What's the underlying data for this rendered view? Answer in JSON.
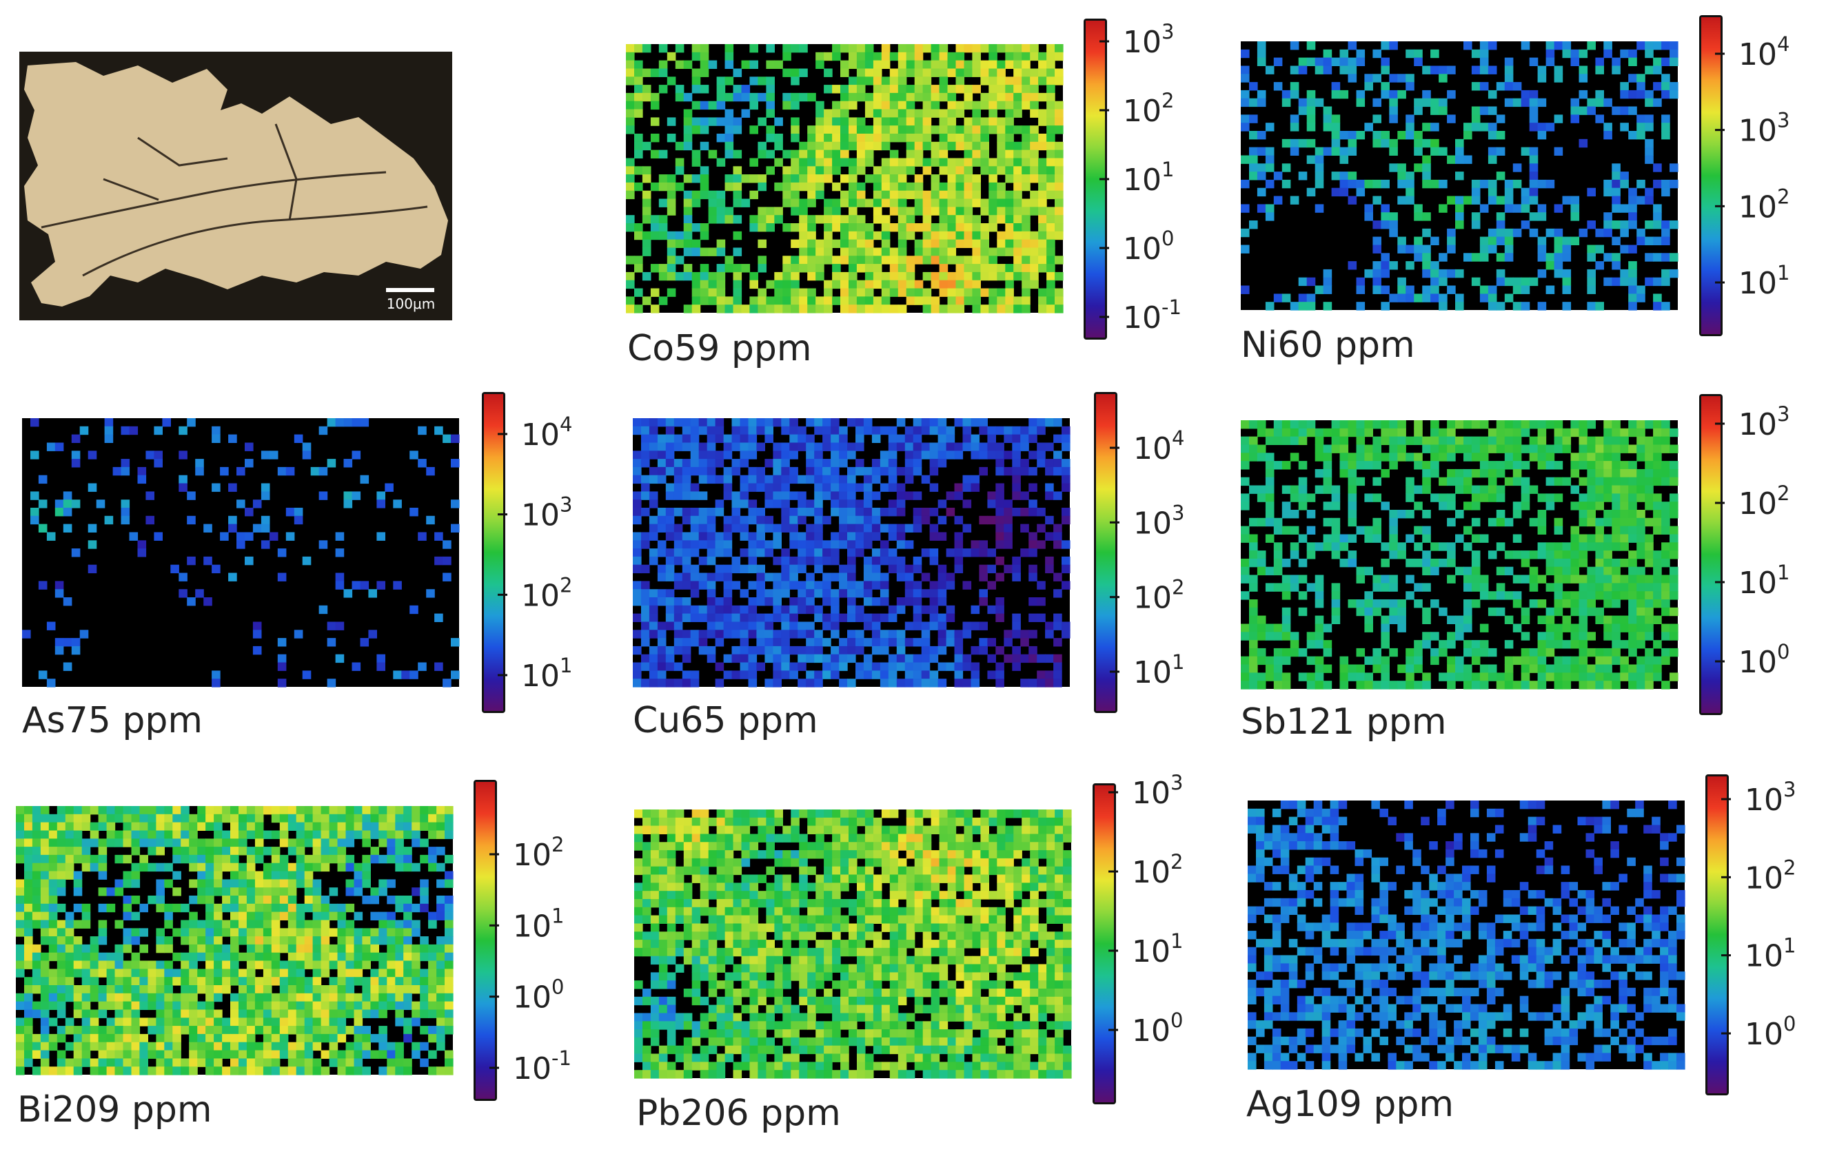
{
  "figure": {
    "micrograph": {
      "scale_bar_label": "100μm"
    },
    "colormap": [
      "#5b0f6e",
      "#2a1aa6",
      "#1d52e0",
      "#1f9bd8",
      "#1ec28f",
      "#25c13a",
      "#8fd83a",
      "#e8e632",
      "#f7a42b",
      "#ee3a22",
      "#c41a1a"
    ],
    "panels": [
      {
        "key": "co",
        "label": "Co59 ppm",
        "ticks": [
          {
            "base": "10",
            "exp": "3"
          },
          {
            "base": "10",
            "exp": "2"
          },
          {
            "base": "10",
            "exp": "1"
          },
          {
            "base": "10",
            "exp": "0"
          },
          {
            "base": "10",
            "exp": "-1"
          }
        ]
      },
      {
        "key": "ni",
        "label": "Ni60 ppm",
        "ticks": [
          {
            "base": "10",
            "exp": "4"
          },
          {
            "base": "10",
            "exp": "3"
          },
          {
            "base": "10",
            "exp": "2"
          },
          {
            "base": "10",
            "exp": "1"
          }
        ]
      },
      {
        "key": "as",
        "label": "As75 ppm",
        "ticks": [
          {
            "base": "10",
            "exp": "4"
          },
          {
            "base": "10",
            "exp": "3"
          },
          {
            "base": "10",
            "exp": "2"
          },
          {
            "base": "10",
            "exp": "1"
          }
        ]
      },
      {
        "key": "cu",
        "label": "Cu65 ppm",
        "ticks": [
          {
            "base": "10",
            "exp": "4"
          },
          {
            "base": "10",
            "exp": "3"
          },
          {
            "base": "10",
            "exp": "2"
          },
          {
            "base": "10",
            "exp": "1"
          }
        ]
      },
      {
        "key": "sb",
        "label": "Sb121 ppm",
        "ticks": [
          {
            "base": "10",
            "exp": "3"
          },
          {
            "base": "10",
            "exp": "2"
          },
          {
            "base": "10",
            "exp": "1"
          },
          {
            "base": "10",
            "exp": "0"
          }
        ]
      },
      {
        "key": "bi",
        "label": "Bi209 ppm",
        "ticks": [
          {
            "base": "10",
            "exp": "2"
          },
          {
            "base": "10",
            "exp": "1"
          },
          {
            "base": "10",
            "exp": "0"
          },
          {
            "base": "10",
            "exp": "-1"
          }
        ]
      },
      {
        "key": "pb",
        "label": "Pb206 ppm",
        "ticks": [
          {
            "base": "10",
            "exp": "3"
          },
          {
            "base": "10",
            "exp": "2"
          },
          {
            "base": "10",
            "exp": "1"
          },
          {
            "base": "10",
            "exp": "0"
          }
        ]
      },
      {
        "key": "ag",
        "label": "Ag109 ppm",
        "ticks": [
          {
            "base": "10",
            "exp": "3"
          },
          {
            "base": "10",
            "exp": "2"
          },
          {
            "base": "10",
            "exp": "1"
          },
          {
            "base": "10",
            "exp": "0"
          }
        ]
      }
    ]
  }
}
